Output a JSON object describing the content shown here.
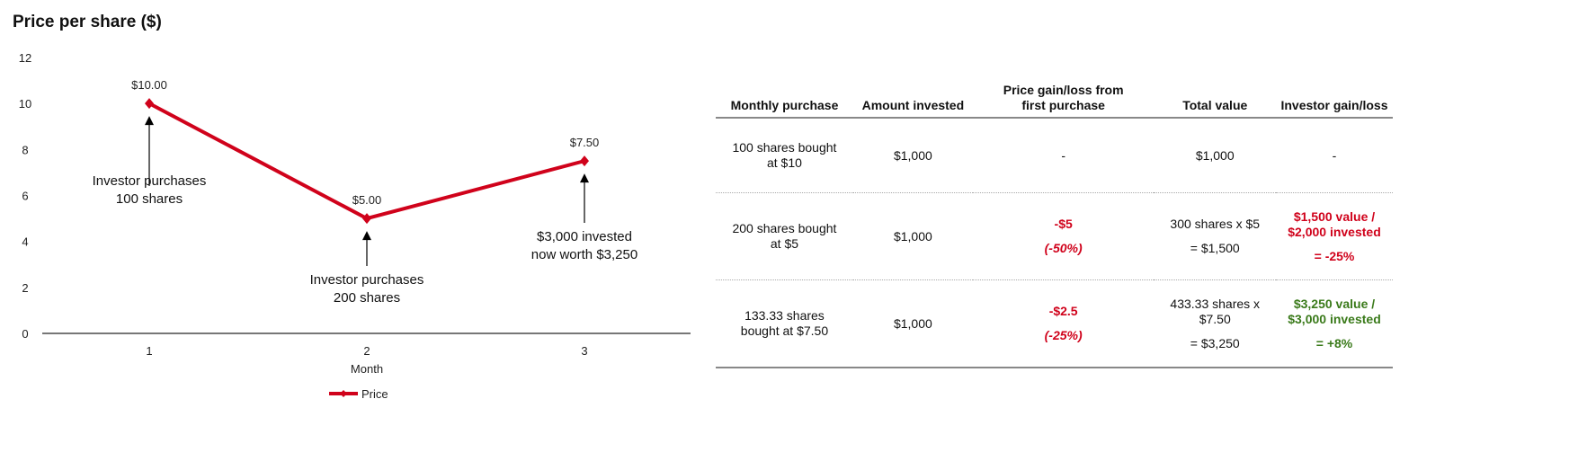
{
  "chart_data": {
    "type": "line",
    "title": "Price per share ($)",
    "xlabel": "Month",
    "ylabel": "",
    "categories": [
      "1",
      "2",
      "3"
    ],
    "ylim": [
      0,
      12
    ],
    "yticks": [
      "0",
      "2",
      "4",
      "6",
      "8",
      "10",
      "12"
    ],
    "grid": false,
    "legend": "bottom",
    "series": [
      {
        "name": "Price",
        "values": [
          10,
          5,
          7.5
        ],
        "color": "#d0021b",
        "data_labels": [
          "$10.00",
          "$5.00",
          "$7.50"
        ]
      }
    ],
    "annotations": [
      {
        "x": "1",
        "text": [
          "Investor purchases",
          "100 shares"
        ]
      },
      {
        "x": "2",
        "text": [
          "Investor purchases",
          "200 shares"
        ]
      },
      {
        "x": "3",
        "text": [
          "$3,000 invested",
          "now worth $3,250"
        ]
      }
    ]
  },
  "table": {
    "headers": [
      "Monthly purchase",
      "Amount invested",
      "Price gain/loss from first purchase",
      "Total value",
      "Investor gain/loss"
    ],
    "rows": [
      {
        "purchase": "100 shares bought at $10",
        "amount": "$1,000",
        "price_change": "-",
        "price_pct": "",
        "total_a": "$1,000",
        "total_b": "",
        "gain_a": "-",
        "gain_b": ""
      },
      {
        "purchase": "200 shares bought at $5",
        "amount": "$1,000",
        "price_change": "-$5",
        "price_pct": "(-50%)",
        "total_a": "300 shares x $5",
        "total_b": "= $1,500",
        "gain_a": "$1,500 value / $2,000 invested",
        "gain_b": "= -25%"
      },
      {
        "purchase": "133.33 shares bought at $7.50",
        "amount": "$1,000",
        "price_change": "-$2.5",
        "price_pct": "(-25%)",
        "total_a": "433.33 shares x $7.50",
        "total_b": "= $3,250",
        "gain_a": "$3,250 value / $3,000 invested",
        "gain_b": "= +8%"
      }
    ],
    "colors": {
      "loss": "#d0021b",
      "gain": "#3a7a1a"
    }
  }
}
